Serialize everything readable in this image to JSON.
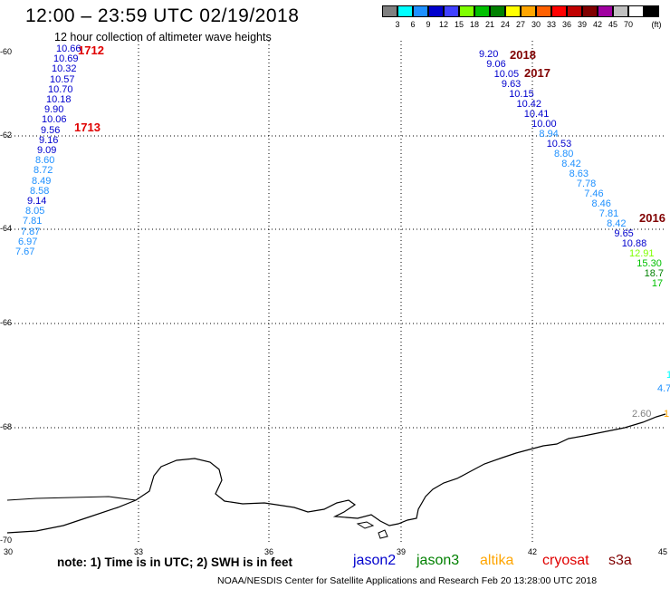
{
  "title": "12:00 – 23:59 UTC 02/19/2018",
  "subtitle": "12 hour collection of altimeter wave heights",
  "colorbar": {
    "unit": "(ft)",
    "colors": [
      "#808080",
      "#00ffff",
      "#1e90ff",
      "#0000cd",
      "#4040ff",
      "#7fff00",
      "#00c000",
      "#008000",
      "#ffff00",
      "#ffa500",
      "#ff6000",
      "#ff0000",
      "#c00000",
      "#800000",
      "#a000a0",
      "#c0c0c0",
      "#ffffff",
      "#000000"
    ],
    "labels": [
      "3",
      "6",
      "9",
      "12",
      "15",
      "18",
      "21",
      "24",
      "27",
      "30",
      "33",
      "36",
      "39",
      "42",
      "45",
      "70"
    ]
  },
  "axes": {
    "lat_labels": [
      "-60",
      "-62",
      "-64",
      "-66",
      "-68",
      "-70"
    ],
    "lon_labels": [
      "30",
      "33",
      "36",
      "39",
      "42",
      "45"
    ]
  },
  "pass_labels": [
    {
      "text": "1712",
      "color": "#e00000"
    },
    {
      "text": "1713",
      "color": "#e00000"
    },
    {
      "text": "2018",
      "color": "#800000"
    },
    {
      "text": "2017",
      "color": "#800000"
    },
    {
      "text": "2016",
      "color": "#800000"
    }
  ],
  "track_left": [
    {
      "v": "10.66",
      "c": "#0000cd"
    },
    {
      "v": "10.69",
      "c": "#0000cd"
    },
    {
      "v": "10.32",
      "c": "#0000cd"
    },
    {
      "v": "10.57",
      "c": "#0000cd"
    },
    {
      "v": "10.70",
      "c": "#0000cd"
    },
    {
      "v": "10.18",
      "c": "#0000cd"
    },
    {
      "v": "9.90",
      "c": "#0000cd"
    },
    {
      "v": "10.06",
      "c": "#0000cd"
    },
    {
      "v": "9.56",
      "c": "#0000cd"
    },
    {
      "v": "9.16",
      "c": "#0000cd"
    },
    {
      "v": "9.09",
      "c": "#0000cd"
    },
    {
      "v": "8.60",
      "c": "#1e90ff"
    },
    {
      "v": "8.72",
      "c": "#1e90ff"
    },
    {
      "v": "8.49",
      "c": "#1e90ff"
    },
    {
      "v": "8.58",
      "c": "#1e90ff"
    },
    {
      "v": "9.14",
      "c": "#0000cd"
    },
    {
      "v": "8.05",
      "c": "#1e90ff"
    },
    {
      "v": "7.81",
      "c": "#1e90ff"
    },
    {
      "v": "7.87",
      "c": "#1e90ff"
    },
    {
      "v": "6.97",
      "c": "#1e90ff"
    },
    {
      "v": "7.67",
      "c": "#1e90ff"
    }
  ],
  "track_right": [
    {
      "v": "9.20",
      "c": "#0000cd"
    },
    {
      "v": "9.06",
      "c": "#0000cd"
    },
    {
      "v": "10.05",
      "c": "#0000cd"
    },
    {
      "v": "9.63",
      "c": "#0000cd"
    },
    {
      "v": "10.15",
      "c": "#0000cd"
    },
    {
      "v": "10.42",
      "c": "#0000cd"
    },
    {
      "v": "10.41",
      "c": "#0000cd"
    },
    {
      "v": "10.00",
      "c": "#0000cd"
    },
    {
      "v": "8.94",
      "c": "#1e90ff"
    },
    {
      "v": "10.53",
      "c": "#0000cd"
    },
    {
      "v": "8.80",
      "c": "#1e90ff"
    },
    {
      "v": "8.42",
      "c": "#1e90ff"
    },
    {
      "v": "8.63",
      "c": "#1e90ff"
    },
    {
      "v": "7.78",
      "c": "#1e90ff"
    },
    {
      "v": "7.46",
      "c": "#1e90ff"
    },
    {
      "v": "8.46",
      "c": "#1e90ff"
    },
    {
      "v": "7.81",
      "c": "#1e90ff"
    },
    {
      "v": "8.42",
      "c": "#1e90ff"
    },
    {
      "v": "9.65",
      "c": "#0000cd"
    },
    {
      "v": "10.88",
      "c": "#0000cd"
    },
    {
      "v": "12.91",
      "c": "#7fff00"
    },
    {
      "v": "15.30",
      "c": "#00c000"
    },
    {
      "v": "18.7",
      "c": "#008000"
    },
    {
      "v": "17",
      "c": "#00c000"
    }
  ],
  "track_edge": [
    {
      "v": "1",
      "c": "#00ffff"
    },
    {
      "v": "4.7",
      "c": "#1e90ff"
    },
    {
      "v": "2.60",
      "c": "#808080"
    },
    {
      "v": "1",
      "c": "#ffa500"
    }
  ],
  "note": "note: 1) Time is in UTC; 2) SWH is in feet",
  "legend": [
    {
      "name": "jason2",
      "color": "#0000cd"
    },
    {
      "name": "jason3",
      "color": "#008000"
    },
    {
      "name": "altika",
      "color": "#ffa500"
    },
    {
      "name": "cryosat",
      "color": "#e00000"
    },
    {
      "name": "s3a",
      "color": "#800000"
    }
  ],
  "credit": "NOAA/NESDIS Center for Satellite Applications and Research     Feb 20 13:28:00 UTC 2018"
}
